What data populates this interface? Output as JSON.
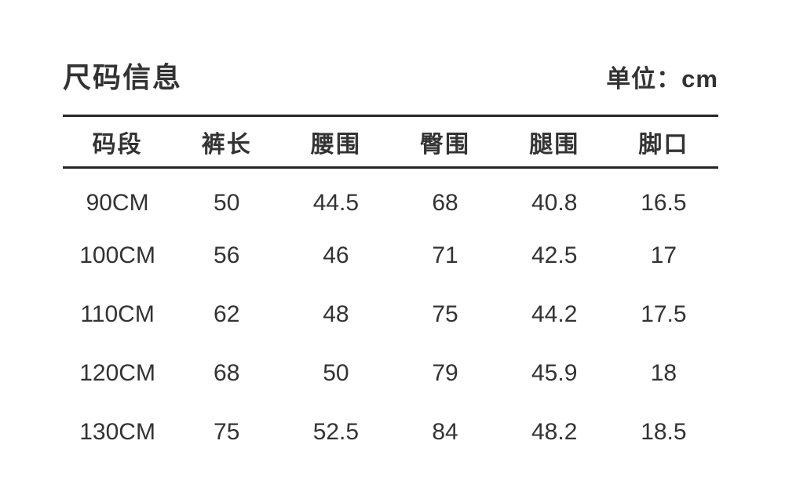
{
  "page": {
    "title": "尺码信息",
    "unit_label": "单位：cm"
  },
  "table": {
    "headers": [
      "码段",
      "裤长",
      "腰围",
      "臀围",
      "腿围",
      "脚口"
    ],
    "rows": [
      [
        "90CM",
        "50",
        "44.5",
        "68",
        "40.8",
        "16.5"
      ],
      [
        "100CM",
        "56",
        "46",
        "71",
        "42.5",
        "17"
      ],
      [
        "110CM",
        "62",
        "48",
        "75",
        "44.2",
        "17.5"
      ],
      [
        "120CM",
        "68",
        "50",
        "79",
        "45.9",
        "18"
      ],
      [
        "130CM",
        "75",
        "52.5",
        "84",
        "48.2",
        "18.5"
      ]
    ]
  },
  "colors": {
    "text": "#333333",
    "rule_line": "#262626",
    "background": "#ffffff"
  }
}
